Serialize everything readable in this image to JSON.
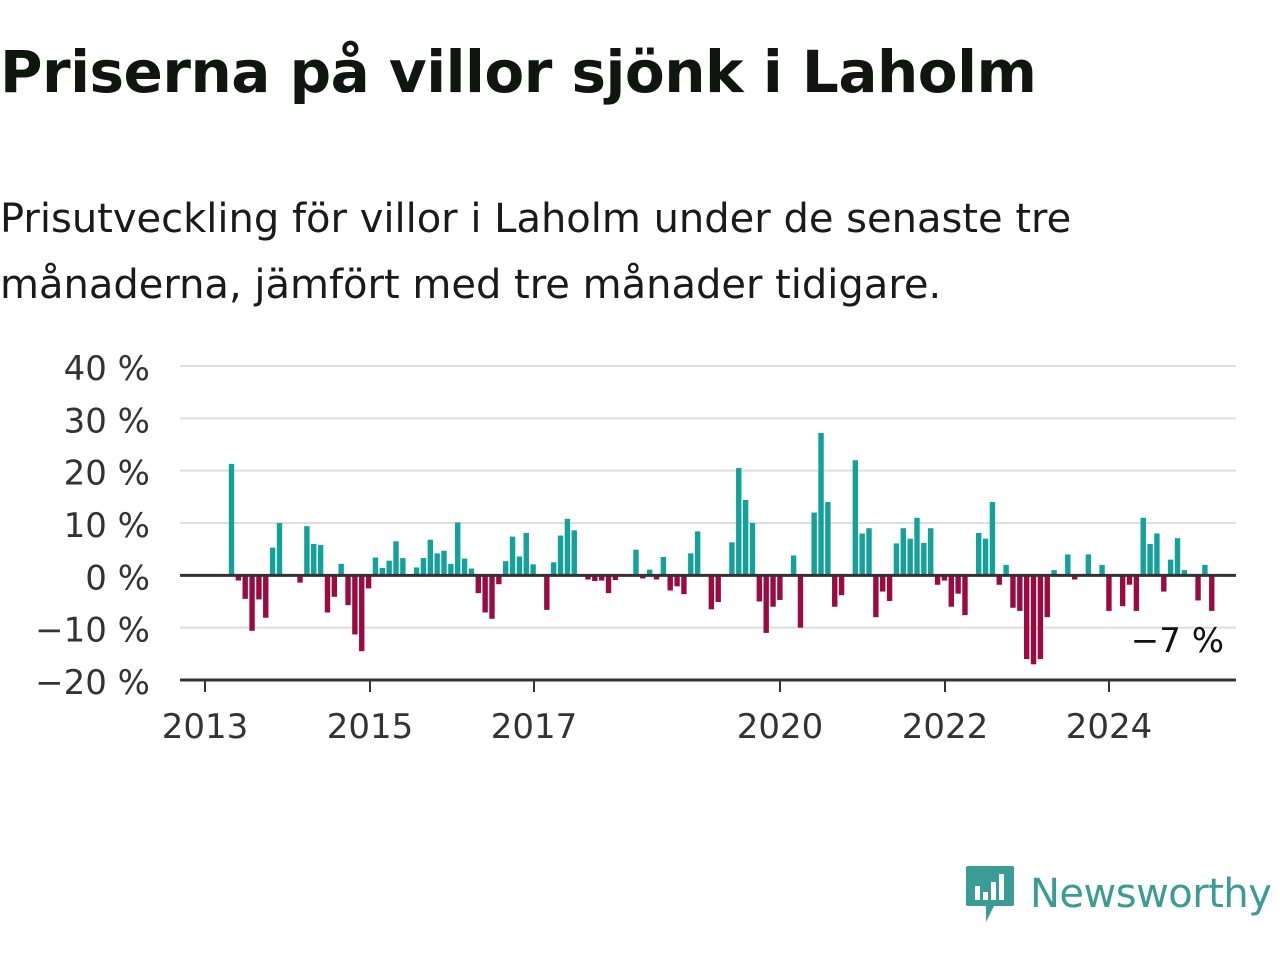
{
  "title": "Priserna på villor sjönk i Laholm",
  "subtitle": "Prisutveckling för villor i Laholm under de senaste tre månaderna, jämfört med tre månader tidigare.",
  "brand": {
    "name": "Newsworthy",
    "color": "#3a9c94",
    "icon": "newsworthy-logo-icon"
  },
  "colors": {
    "positive": "#13a19a",
    "negative": "#9c0a42",
    "grid": "#dddddd",
    "axis": "#333333"
  },
  "chart_data": {
    "type": "bar",
    "ylim": [
      -20,
      40
    ],
    "y_ticks": [
      {
        "value": 40,
        "label": "40 %"
      },
      {
        "value": 30,
        "label": "30 %"
      },
      {
        "value": 20,
        "label": "20 %"
      },
      {
        "value": 10,
        "label": "10 %"
      },
      {
        "value": 0,
        "label": "0 %"
      },
      {
        "value": -10,
        "label": "−10 %"
      },
      {
        "value": -20,
        "label": "−20 %"
      }
    ],
    "x_ticks": [
      "2013",
      "2015",
      "2017",
      "2020",
      "2022",
      "2024"
    ],
    "end_label": "−7 %",
    "series": [
      {
        "values": [
          21.3,
          -1,
          -4.5,
          -10.6,
          -4.6,
          -8.1,
          5.3,
          10,
          null,
          null,
          -1.4,
          9.4,
          6,
          5.8,
          -7.1,
          -4.1,
          2.2,
          -5.7,
          -11.3,
          -14.5,
          -2.5,
          3.4,
          1.4,
          2.8,
          6.5,
          3.3,
          null,
          1.5,
          3.3,
          6.8,
          4.2,
          4.7,
          2.2,
          10.1,
          3.2,
          1.3,
          -3.4,
          -7.1,
          -8.3,
          -1.7,
          2.7,
          7.4,
          3.6,
          8.1,
          2.1,
          null,
          -6.6,
          2.5,
          7.6,
          10.8,
          8.6,
          null,
          -0.8,
          -1.1,
          -1,
          -3.4,
          -0.9,
          null,
          null,
          4.9,
          -0.6,
          1.1,
          -0.8,
          3.5,
          -2.9,
          -2.1,
          -3.6,
          4.2,
          8.4,
          null,
          -6.5,
          -5.1,
          null,
          6.3,
          20.5,
          14.4,
          10,
          -5,
          -11,
          -6,
          -4.7,
          null,
          3.8,
          -10,
          null,
          12,
          27.2,
          14,
          -6,
          -3.8,
          null,
          22,
          8,
          9,
          -8,
          -3.1,
          -4.9,
          6.1,
          9,
          7,
          11,
          6.2,
          9,
          -1.8,
          -1,
          -6,
          -3.5,
          -7.6,
          null,
          8.1,
          7,
          14,
          -1.8,
          2,
          -6.2,
          -6.8,
          -16,
          -17,
          -16,
          -8,
          1,
          null,
          4,
          -0.8,
          null,
          4,
          null,
          2,
          -6.8,
          null,
          -5.9,
          -1.8,
          -6.8,
          11,
          6,
          8,
          -3.1,
          3,
          7.1,
          1,
          null,
          -4.8,
          2,
          -6.8
        ]
      }
    ]
  }
}
